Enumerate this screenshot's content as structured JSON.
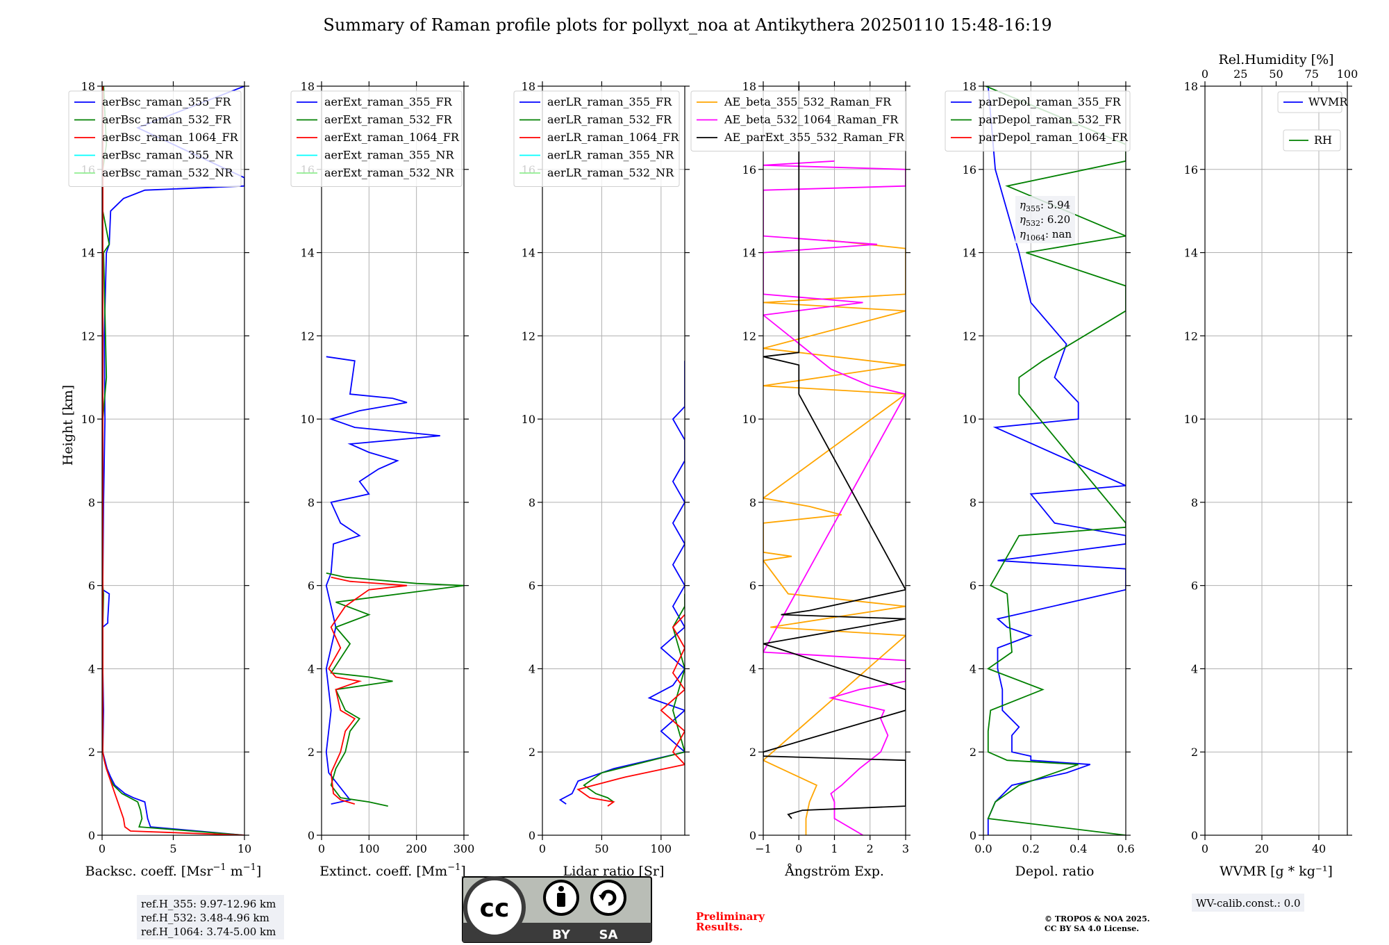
{
  "figure": {
    "title": "Summary of Raman profile plots for pollyxt_noa at Antikythera 20250110 15:48-16:19",
    "y_label": "Height [km]"
  },
  "chart_data": [
    {
      "id": "bsc",
      "type": "line",
      "xlabel": "Backsc. coeff. [Msr$^{-1}$ m$^{-1}$]",
      "xlabel_base": "Backsc. coeff. [Msr",
      "xlabel_mid": " m",
      "xlabel_sup": "−1",
      "xlim": [
        0,
        10
      ],
      "xticks": [
        0,
        5,
        10
      ],
      "xticklabels": [
        "0",
        "5",
        "10"
      ],
      "ylim": [
        0,
        18
      ],
      "yticks": [
        0,
        2,
        4,
        6,
        8,
        10,
        12,
        14,
        16,
        18
      ],
      "legend": "upper-left",
      "series": [
        {
          "name": "aerBsc_raman_355_FR",
          "color": "#0000ff",
          "y": [
            0,
            0.2,
            0.4,
            0.6,
            0.8,
            0.9,
            1.0,
            1.2,
            1.4,
            1.6,
            1.8,
            2.0,
            3,
            4,
            5,
            5.1,
            5.2,
            5.8,
            5.9,
            6,
            8,
            10,
            12,
            14,
            14.2,
            15,
            15.3,
            15.5,
            15.6,
            15.8,
            17,
            18
          ],
          "x": [
            10,
            3.4,
            3.2,
            3.1,
            3.0,
            2.2,
            1.6,
            0.9,
            0.6,
            0.35,
            0.2,
            0.05,
            0.1,
            0.05,
            0.05,
            0.4,
            0.4,
            0.5,
            0.05,
            0.05,
            0.1,
            0.2,
            0.15,
            0.3,
            0.5,
            0.6,
            1.5,
            3,
            10,
            10,
            2.5,
            10
          ]
        },
        {
          "name": "aerBsc_raman_532_FR",
          "color": "#008000",
          "y": [
            0,
            0.2,
            0.4,
            0.6,
            0.8,
            1.0,
            1.2,
            1.4,
            1.6,
            1.8,
            2.0,
            3,
            4,
            5,
            5.8,
            6,
            10,
            11,
            14,
            14.2,
            15,
            16,
            16.6,
            18
          ],
          "x": [
            10,
            2.6,
            2.8,
            2.7,
            2.5,
            1.4,
            0.8,
            0.5,
            0.3,
            0.15,
            0.05,
            0.05,
            0.05,
            0.05,
            0.1,
            0.05,
            0.05,
            0.3,
            0.1,
            0.5,
            0.05,
            0.05,
            0.3,
            0.1
          ]
        },
        {
          "name": "aerBsc_raman_1064_FR",
          "color": "#ff0000",
          "y": [
            0,
            0.1,
            0.2,
            0.4,
            0.6,
            0.8,
            1.0,
            1.2,
            1.4,
            1.6,
            1.8,
            2.0,
            3,
            6,
            10,
            14,
            18
          ],
          "x": [
            10,
            2,
            1.6,
            1.5,
            1.3,
            1.1,
            0.9,
            0.7,
            0.5,
            0.3,
            0.15,
            0.05,
            0.05,
            0.05,
            0.05,
            0.05,
            0.05
          ]
        },
        {
          "name": "aerBsc_raman_355_NR",
          "color": "#00ffff",
          "y": [],
          "x": []
        },
        {
          "name": "aerBsc_raman_532_NR",
          "color": "#90ee90",
          "y": [],
          "x": []
        }
      ],
      "annotation": {
        "lines": [
          "ref.H_355: 9.97-12.96 km",
          "ref.H_532: 3.48-4.96 km",
          "ref.H_1064: 3.74-5.00 km"
        ]
      }
    },
    {
      "id": "ext",
      "type": "line",
      "xlabel_base": "Extinct. coeff. [Mm",
      "xlabel_sup": "−1",
      "xlabel_end": "]",
      "xlim": [
        0,
        300
      ],
      "xticks": [
        0,
        100,
        200,
        300
      ],
      "xticklabels": [
        "0",
        "100",
        "200",
        "300"
      ],
      "ylim": [
        0,
        18
      ],
      "yticks": [
        0,
        2,
        4,
        6,
        8,
        10,
        12,
        14,
        16,
        18
      ],
      "legend": "upper-left",
      "series": [
        {
          "name": "aerExt_raman_355_FR",
          "color": "#0000ff",
          "y": [
            0.75,
            0.85,
            1.5,
            2.0,
            3.0,
            4.0,
            5.0,
            5.5,
            6.0,
            6.3,
            7.0,
            7.2,
            7.5,
            8.0,
            8.2,
            8.5,
            8.8,
            9.0,
            9.2,
            9.4,
            9.6,
            9.8,
            10.0,
            10.2,
            10.4,
            10.5,
            10.6,
            11.4,
            11.5
          ],
          "x": [
            20,
            60,
            15,
            10,
            20,
            10,
            30,
            20,
            10,
            20,
            25,
            80,
            40,
            20,
            100,
            80,
            120,
            160,
            100,
            60,
            250,
            70,
            20,
            80,
            180,
            150,
            60,
            70,
            10
          ]
        },
        {
          "name": "aerExt_raman_532_FR",
          "color": "#008000",
          "y": [
            0.7,
            0.8,
            0.9,
            1.2,
            1.6,
            2.0,
            2.5,
            2.8,
            3.0,
            3.5,
            3.7,
            3.8,
            3.9,
            4.6,
            5.0,
            5.3,
            5.6,
            6.0,
            6.05,
            6.2,
            6.3
          ],
          "x": [
            140,
            100,
            40,
            20,
            30,
            50,
            60,
            80,
            50,
            30,
            150,
            100,
            20,
            60,
            30,
            100,
            30,
            300,
            200,
            50,
            10
          ]
        },
        {
          "name": "aerExt_raman_1064_FR",
          "color": "#ff0000",
          "y": [
            0.75,
            0.85,
            1.0,
            1.5,
            2.0,
            2.5,
            2.8,
            3.0,
            3.5,
            3.7,
            3.8,
            4.0,
            4.5,
            5.0,
            5.5,
            5.9,
            6.0,
            6.1,
            6.2
          ],
          "x": [
            70,
            40,
            25,
            20,
            40,
            50,
            70,
            40,
            30,
            80,
            30,
            15,
            40,
            20,
            50,
            100,
            180,
            60,
            20
          ]
        },
        {
          "name": "aerExt_raman_355_NR",
          "color": "#00ffff",
          "y": [],
          "x": []
        },
        {
          "name": "aerExt_raman_532_NR",
          "color": "#90ee90",
          "y": [],
          "x": []
        }
      ]
    },
    {
      "id": "lr",
      "type": "line",
      "xlabel": "Lidar ratio [Sr]",
      "xlim": [
        0,
        120
      ],
      "xticks": [
        0,
        50,
        100
      ],
      "xticklabels": [
        "0",
        "50",
        "100"
      ],
      "ylim": [
        0,
        18
      ],
      "yticks": [
        0,
        2,
        4,
        6,
        8,
        10,
        12,
        14,
        16,
        18
      ],
      "legend": "upper-left",
      "series": [
        {
          "name": "aerLR_raman_355_FR",
          "color": "#0000ff",
          "y": [
            0.75,
            0.85,
            1.0,
            1.3,
            1.6,
            2.0,
            2.5,
            3.0,
            3.3,
            3.6,
            4.0,
            4.5,
            5.0,
            5.5,
            6.0,
            6.5,
            7.0,
            7.5,
            8.0,
            8.5,
            9.0,
            9.5,
            10.0,
            10.3,
            10.6,
            11.4
          ],
          "x": [
            20,
            15,
            25,
            30,
            60,
            120,
            100,
            120,
            90,
            110,
            120,
            100,
            120,
            110,
            120,
            110,
            120,
            110,
            120,
            110,
            120,
            120,
            110,
            120,
            120,
            120
          ]
        },
        {
          "name": "aerLR_raman_532_FR",
          "color": "#008000",
          "y": [
            0.8,
            0.9,
            1.0,
            1.2,
            1.5,
            2.0,
            3.0,
            4.0,
            5.0,
            5.5,
            5.8
          ],
          "x": [
            60,
            55,
            45,
            35,
            50,
            120,
            110,
            120,
            110,
            120,
            120
          ]
        },
        {
          "name": "aerLR_raman_1064_FR",
          "color": "#ff0000",
          "y": [
            0.7,
            0.8,
            0.9,
            1.1,
            1.4,
            1.7,
            2.0,
            2.5,
            3.0,
            3.5,
            3.9,
            4.5,
            5.0,
            5.3
          ],
          "x": [
            55,
            60,
            40,
            30,
            70,
            120,
            110,
            120,
            100,
            120,
            110,
            120,
            110,
            120
          ]
        },
        {
          "name": "aerLR_raman_355_NR",
          "color": "#00ffff",
          "y": [],
          "x": []
        },
        {
          "name": "aerLR_raman_532_NR",
          "color": "#90ee90",
          "y": [],
          "x": []
        }
      ]
    },
    {
      "id": "ae",
      "type": "line",
      "xlabel": "Ångström Exp.",
      "xlim": [
        -1,
        3
      ],
      "xticks": [
        -1,
        0,
        1,
        2,
        3
      ],
      "xticklabels": [
        "−1",
        "0",
        "1",
        "2",
        "3"
      ],
      "ylim": [
        0,
        18
      ],
      "yticks": [
        0,
        2,
        4,
        6,
        8,
        10,
        12,
        14,
        16,
        18
      ],
      "legend": "upper-right",
      "series": [
        {
          "name": "AE_beta_355_532_Raman_FR",
          "color": "#ffa500",
          "y": [
            0,
            0.4,
            0.8,
            1.2,
            1.6,
            1.8,
            4.8,
            5.0,
            5.5,
            5.8,
            6.6,
            6.7,
            6.8,
            7.5,
            7.7,
            7.9,
            8.1,
            10.6,
            10.8,
            11.3,
            11.7,
            12.6,
            12.8,
            13.0,
            14.1,
            14.3
          ],
          "x": [
            0.2,
            0.2,
            0.3,
            0.5,
            -0.5,
            -1,
            3,
            -0.8,
            3,
            -0.3,
            -1,
            -0.2,
            -1,
            -1,
            1.2,
            0.3,
            -1,
            3,
            -1,
            3,
            -1,
            3,
            -1,
            3,
            3,
            0.8
          ]
        },
        {
          "name": "AE_beta_532_1064_Raman_FR",
          "color": "#ff00ff",
          "y": [
            0,
            0.4,
            0.8,
            1.0,
            1.2,
            1.6,
            2.0,
            2.4,
            2.8,
            3.0,
            3.3,
            3.5,
            3.7,
            4.2,
            4.4,
            10.6,
            10.8,
            11.2,
            12.5,
            12.8,
            13.0,
            14.0,
            14.2,
            14.4,
            15.5,
            15.6,
            16.0,
            16.1,
            16.2
          ],
          "x": [
            1.8,
            1.0,
            1.0,
            0.9,
            1.2,
            1.7,
            2.3,
            2.5,
            2.3,
            2.4,
            0.9,
            1.7,
            3,
            3,
            -1,
            3,
            2.0,
            0.9,
            -1,
            1.8,
            -1,
            -1,
            2.2,
            -1,
            -1,
            3,
            3,
            -1,
            1
          ]
        },
        {
          "name": "AE_parExt_355_532_Raman_FR",
          "color": "#000000",
          "y": [
            0.4,
            0.5,
            0.6,
            0.7,
            1.8,
            1.9,
            2.0,
            3.0,
            3.5,
            4.6,
            5.2,
            5.3,
            5.4,
            5.9,
            10.6,
            10.8,
            11.3,
            11.5,
            11.6,
            18
          ],
          "x": [
            -0.2,
            -0.3,
            0.1,
            3,
            3,
            -1,
            -1,
            3,
            3,
            -1,
            3,
            -0.5,
            0.3,
            3,
            0,
            0,
            0,
            -1,
            0,
            0
          ]
        }
      ]
    },
    {
      "id": "depol",
      "type": "line",
      "xlabel": "Depol. ratio",
      "xlim": [
        0,
        0.6
      ],
      "xticks": [
        0,
        0.2,
        0.4,
        0.6
      ],
      "xticklabels": [
        "0.0",
        "0.2",
        "0.4",
        "0.6"
      ],
      "ylim": [
        0,
        18
      ],
      "yticks": [
        0,
        2,
        4,
        6,
        8,
        10,
        12,
        14,
        16,
        18
      ],
      "legend": "upper-left",
      "series": [
        {
          "name": "parDepol_raman_355_FR",
          "color": "#0000ff",
          "y": [
            0,
            0.4,
            0.8,
            1.2,
            1.5,
            1.7,
            1.8,
            1.9,
            2.0,
            2.4,
            2.6,
            3.0,
            3.5,
            4.0,
            4.5,
            4.8,
            5.0,
            5.2,
            5.9,
            6.0,
            6.2,
            6.4,
            6.6,
            7.0,
            7.2,
            7.5,
            8.2,
            8.4,
            9.8,
            10.0,
            10.4,
            11.0,
            11.8,
            12.8,
            14.0,
            16.0,
            18
          ],
          "x": [
            0.02,
            0.02,
            0.05,
            0.12,
            0.35,
            0.45,
            0.2,
            0.2,
            0.12,
            0.12,
            0.15,
            0.08,
            0.08,
            0.06,
            0.06,
            0.2,
            0.1,
            0.06,
            0.6,
            0.6,
            0.6,
            0.6,
            0.06,
            0.6,
            0.6,
            0.3,
            0.2,
            0.6,
            0.05,
            0.4,
            0.4,
            0.3,
            0.35,
            0.2,
            0.15,
            0.05,
            0.02
          ]
        },
        {
          "name": "parDepol_raman_532_FR",
          "color": "#008000",
          "y": [
            0,
            0.4,
            0.8,
            1.2,
            1.5,
            1.7,
            1.8,
            2.0,
            2.5,
            3.0,
            3.5,
            4.0,
            4.4,
            5.8,
            6.0,
            7.2,
            7.4,
            7.5,
            10.6,
            11.0,
            11.4,
            12.6,
            13.0,
            13.2,
            14.0,
            14.4,
            15.6,
            16.2,
            16.6,
            18
          ],
          "x": [
            0.6,
            0.02,
            0.05,
            0.15,
            0.3,
            0.4,
            0.1,
            0.02,
            0.02,
            0.03,
            0.25,
            0.02,
            0.12,
            0.1,
            0.03,
            0.15,
            0.6,
            0.6,
            0.15,
            0.15,
            0.25,
            0.6,
            0.6,
            0.6,
            0.18,
            0.6,
            0.1,
            0.6,
            0.6,
            0.01
          ]
        },
        {
          "name": "parDepol_raman_1064_FR",
          "color": "#ff0000",
          "y": [],
          "x": []
        }
      ],
      "annotation": {
        "lines": [
          {
            "sym": "η",
            "sub": "355",
            "val": ": 5.94"
          },
          {
            "sym": "η",
            "sub": "532",
            "val": ": 6.20"
          },
          {
            "sym": "η",
            "sub": "1064",
            "val": ": nan"
          }
        ]
      }
    },
    {
      "id": "wv",
      "type": "line",
      "xlabel": "WVMR [g * kg⁻¹]",
      "xlim": [
        0,
        50
      ],
      "xticks": [
        0,
        20,
        40
      ],
      "xticklabels": [
        "0",
        "20",
        "40"
      ],
      "ylim": [
        0,
        18
      ],
      "yticks": [
        0,
        2,
        4,
        6,
        8,
        10,
        12,
        14,
        16,
        18
      ],
      "top_axis": {
        "label": "Rel.Humidity [%]",
        "xlim": [
          0,
          100
        ],
        "xticks": [
          0,
          25,
          50,
          75,
          100
        ],
        "xticklabels": [
          "0",
          "25",
          "50",
          "75",
          "100"
        ]
      },
      "series": [
        {
          "name": "WVMR",
          "color": "#0000ff",
          "y": [],
          "x": []
        },
        {
          "name": "RH",
          "color": "#008000",
          "y": [],
          "x": []
        }
      ],
      "annotation": {
        "lines": [
          "WV-calib.const.: 0.0"
        ]
      }
    }
  ],
  "footer": {
    "license_badge": {
      "cc": "cc",
      "by": "BY",
      "sa": "SA"
    },
    "preliminary": [
      "Preliminary",
      "Results."
    ],
    "copyright": [
      "© TROPOS & NOA 2025.",
      "CC BY SA 4.0 License."
    ]
  },
  "colors": {
    "grid": "#b0b0b0",
    "annotation_bg": "#eef0f5",
    "preliminary": "#ff0000",
    "badge_bg": "#b9bdb6",
    "badge_dark": "#3b3b3b"
  }
}
